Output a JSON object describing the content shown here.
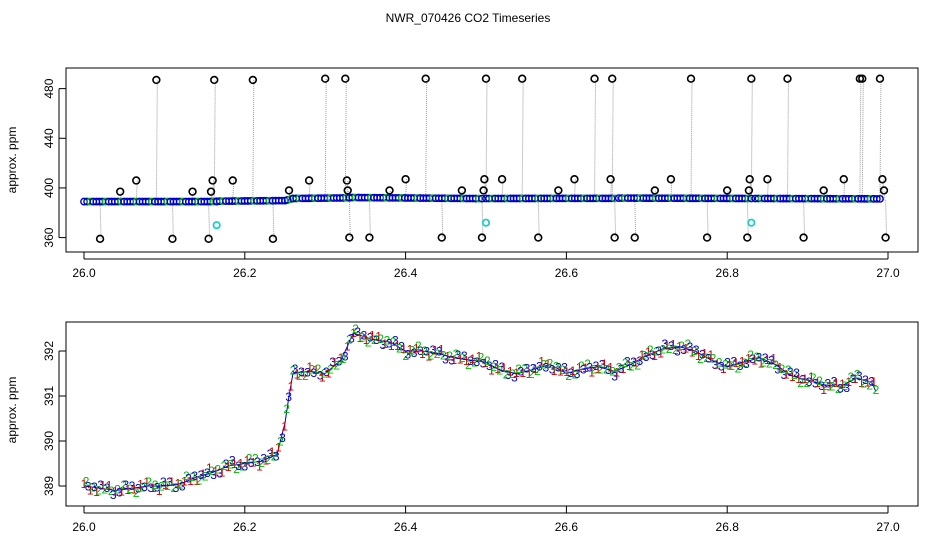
{
  "figure": {
    "title": "NWR_070426  CO2 Timeseries"
  },
  "chart_data": [
    {
      "type": "scatter",
      "panel": "top",
      "xlabel": "",
      "ylabel": "approx. ppm",
      "xlim": [
        26.0,
        27.0
      ],
      "ylim": [
        350,
        495
      ],
      "xticks": [
        26.0,
        26.2,
        26.4,
        26.6,
        26.8,
        27.0
      ],
      "xtick_labels": [
        "26.0",
        "26.2",
        "26.4",
        "26.6",
        "26.8",
        "27.0"
      ],
      "yticks": [
        360,
        400,
        440,
        480
      ],
      "ytick_labels": [
        "360",
        "400",
        "440",
        "480"
      ],
      "grid": false,
      "colors": {
        "baseline": "#0000cc",
        "baseline_accent": "#00bb00",
        "flagged": "#000000",
        "cyan": "#22cccc",
        "spike_line": "#999999"
      },
      "baseline_segments": [
        {
          "x": [
            26.0,
            26.165
          ],
          "y": [
            389.0,
            389.0
          ]
        },
        {
          "x": [
            26.165,
            26.25
          ],
          "y": [
            389.3,
            389.8
          ]
        },
        {
          "x": [
            26.25,
            26.26
          ],
          "y": [
            389.8,
            391.5
          ]
        },
        {
          "x": [
            26.26,
            26.33
          ],
          "y": [
            391.5,
            392.0
          ]
        },
        {
          "x": [
            26.33,
            26.495
          ],
          "y": [
            392.3,
            391.4
          ]
        },
        {
          "x": [
            26.5,
            26.66
          ],
          "y": [
            391.5,
            391.6
          ]
        },
        {
          "x": [
            26.665,
            26.83
          ],
          "y": [
            391.8,
            391.5
          ]
        },
        {
          "x": [
            26.835,
            26.99
          ],
          "y": [
            391.5,
            391.2
          ]
        }
      ],
      "flagged_points": [
        {
          "x": 26.02,
          "y": 359
        },
        {
          "x": 26.045,
          "y": 397
        },
        {
          "x": 26.065,
          "y": 406
        },
        {
          "x": 26.09,
          "y": 487
        },
        {
          "x": 26.11,
          "y": 359
        },
        {
          "x": 26.135,
          "y": 397
        },
        {
          "x": 26.155,
          "y": 359
        },
        {
          "x": 26.158,
          "y": 397
        },
        {
          "x": 26.16,
          "y": 406
        },
        {
          "x": 26.162,
          "y": 487
        },
        {
          "x": 26.185,
          "y": 406
        },
        {
          "x": 26.21,
          "y": 487
        },
        {
          "x": 26.235,
          "y": 359
        },
        {
          "x": 26.255,
          "y": 398
        },
        {
          "x": 26.28,
          "y": 406
        },
        {
          "x": 26.3,
          "y": 488
        },
        {
          "x": 26.325,
          "y": 488
        },
        {
          "x": 26.327,
          "y": 406
        },
        {
          "x": 26.328,
          "y": 398
        },
        {
          "x": 26.33,
          "y": 360
        },
        {
          "x": 26.355,
          "y": 360
        },
        {
          "x": 26.38,
          "y": 398
        },
        {
          "x": 26.4,
          "y": 407
        },
        {
          "x": 26.425,
          "y": 488
        },
        {
          "x": 26.445,
          "y": 360
        },
        {
          "x": 26.47,
          "y": 398
        },
        {
          "x": 26.495,
          "y": 360
        },
        {
          "x": 26.497,
          "y": 398
        },
        {
          "x": 26.498,
          "y": 407
        },
        {
          "x": 26.5,
          "y": 488
        },
        {
          "x": 26.52,
          "y": 407
        },
        {
          "x": 26.545,
          "y": 488
        },
        {
          "x": 26.565,
          "y": 360
        },
        {
          "x": 26.59,
          "y": 398
        },
        {
          "x": 26.61,
          "y": 407
        },
        {
          "x": 26.635,
          "y": 488
        },
        {
          "x": 26.655,
          "y": 407
        },
        {
          "x": 26.657,
          "y": 488
        },
        {
          "x": 26.66,
          "y": 360
        },
        {
          "x": 26.685,
          "y": 360
        },
        {
          "x": 26.71,
          "y": 398
        },
        {
          "x": 26.73,
          "y": 407
        },
        {
          "x": 26.755,
          "y": 488
        },
        {
          "x": 26.775,
          "y": 360
        },
        {
          "x": 26.8,
          "y": 398
        },
        {
          "x": 26.825,
          "y": 360
        },
        {
          "x": 26.827,
          "y": 398
        },
        {
          "x": 26.828,
          "y": 407
        },
        {
          "x": 26.83,
          "y": 488
        },
        {
          "x": 26.85,
          "y": 407
        },
        {
          "x": 26.875,
          "y": 488
        },
        {
          "x": 26.895,
          "y": 360
        },
        {
          "x": 26.92,
          "y": 398
        },
        {
          "x": 26.945,
          "y": 407
        },
        {
          "x": 26.965,
          "y": 488
        },
        {
          "x": 26.968,
          "y": 488
        },
        {
          "x": 26.99,
          "y": 488
        },
        {
          "x": 26.993,
          "y": 407
        },
        {
          "x": 26.995,
          "y": 398
        },
        {
          "x": 26.997,
          "y": 360
        }
      ],
      "cyan_points": [
        {
          "x": 26.165,
          "y": 370
        },
        {
          "x": 26.5,
          "y": 372
        },
        {
          "x": 26.83,
          "y": 372
        }
      ]
    },
    {
      "type": "scatter",
      "panel": "bottom",
      "xlabel": "",
      "ylabel": "approx. ppm",
      "xlim": [
        26.0,
        27.0
      ],
      "ylim": [
        388.6,
        392.6
      ],
      "xticks": [
        26.0,
        26.2,
        26.4,
        26.6,
        26.8,
        27.0
      ],
      "xtick_labels": [
        "26.0",
        "26.2",
        "26.4",
        "26.6",
        "26.8",
        "27.0"
      ],
      "yticks": [
        389,
        390,
        391,
        392
      ],
      "ytick_labels": [
        "389",
        "390",
        "391",
        "392"
      ],
      "grid": false,
      "colors": {
        "series_1": "#cc0000",
        "series_2": "#00bb00",
        "series_3": "#0000cc",
        "line": "#0000cc"
      },
      "point_symbols": [
        "1",
        "2",
        "3"
      ],
      "trend": [
        {
          "x": 26.0,
          "y": 389.0
        },
        {
          "x": 26.02,
          "y": 388.95
        },
        {
          "x": 26.04,
          "y": 388.9
        },
        {
          "x": 26.06,
          "y": 388.95
        },
        {
          "x": 26.08,
          "y": 389.0
        },
        {
          "x": 26.1,
          "y": 389.0
        },
        {
          "x": 26.12,
          "y": 389.05
        },
        {
          "x": 26.14,
          "y": 389.2
        },
        {
          "x": 26.16,
          "y": 389.3
        },
        {
          "x": 26.18,
          "y": 389.45
        },
        {
          "x": 26.2,
          "y": 389.5
        },
        {
          "x": 26.22,
          "y": 389.55
        },
        {
          "x": 26.24,
          "y": 389.7
        },
        {
          "x": 26.25,
          "y": 390.4
        },
        {
          "x": 26.255,
          "y": 391.0
        },
        {
          "x": 26.26,
          "y": 391.5
        },
        {
          "x": 26.28,
          "y": 391.55
        },
        {
          "x": 26.3,
          "y": 391.5
        },
        {
          "x": 26.32,
          "y": 391.8
        },
        {
          "x": 26.335,
          "y": 392.4
        },
        {
          "x": 26.36,
          "y": 392.25
        },
        {
          "x": 26.38,
          "y": 392.2
        },
        {
          "x": 26.4,
          "y": 392.0
        },
        {
          "x": 26.42,
          "y": 392.0
        },
        {
          "x": 26.44,
          "y": 391.95
        },
        {
          "x": 26.46,
          "y": 391.85
        },
        {
          "x": 26.48,
          "y": 391.8
        },
        {
          "x": 26.5,
          "y": 391.75
        },
        {
          "x": 26.52,
          "y": 391.55
        },
        {
          "x": 26.54,
          "y": 391.5
        },
        {
          "x": 26.56,
          "y": 391.6
        },
        {
          "x": 26.58,
          "y": 391.7
        },
        {
          "x": 26.6,
          "y": 391.5
        },
        {
          "x": 26.62,
          "y": 391.6
        },
        {
          "x": 26.64,
          "y": 391.65
        },
        {
          "x": 26.66,
          "y": 391.55
        },
        {
          "x": 26.68,
          "y": 391.7
        },
        {
          "x": 26.7,
          "y": 391.9
        },
        {
          "x": 26.72,
          "y": 392.05
        },
        {
          "x": 26.74,
          "y": 392.1
        },
        {
          "x": 26.76,
          "y": 392.0
        },
        {
          "x": 26.78,
          "y": 391.8
        },
        {
          "x": 26.8,
          "y": 391.65
        },
        {
          "x": 26.82,
          "y": 391.75
        },
        {
          "x": 26.84,
          "y": 391.85
        },
        {
          "x": 26.86,
          "y": 391.7
        },
        {
          "x": 26.88,
          "y": 391.45
        },
        {
          "x": 26.9,
          "y": 391.35
        },
        {
          "x": 26.92,
          "y": 391.25
        },
        {
          "x": 26.94,
          "y": 391.2
        },
        {
          "x": 26.96,
          "y": 391.4
        },
        {
          "x": 26.98,
          "y": 391.3
        },
        {
          "x": 26.985,
          "y": 391.1
        }
      ]
    }
  ]
}
